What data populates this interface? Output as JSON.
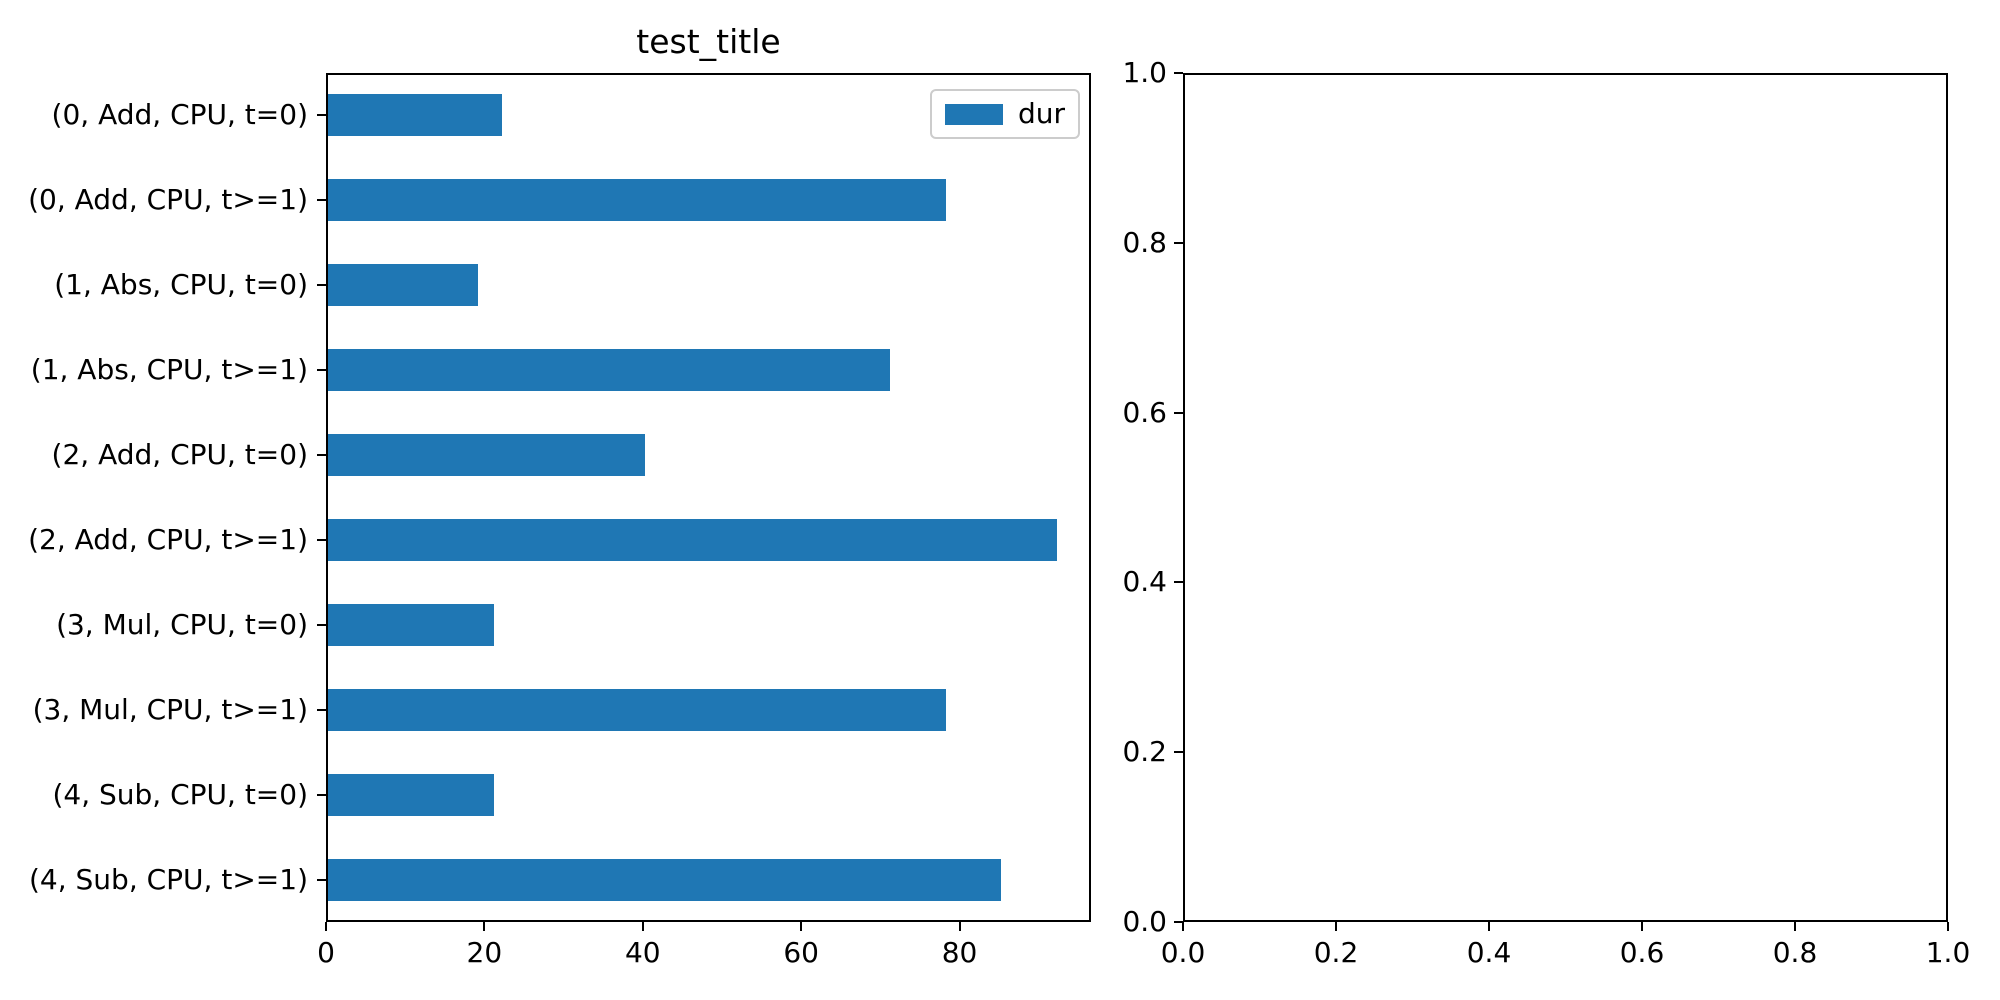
{
  "figure": {
    "background": "#ffffff"
  },
  "chart_data": [
    {
      "type": "bar",
      "orientation": "horizontal",
      "title": "test_title",
      "categories": [
        "(0, Add, CPU, t=0)",
        "(0, Add, CPU, t>=1)",
        "(1, Abs, CPU, t=0)",
        "(1, Abs, CPU, t>=1)",
        "(2, Add, CPU, t=0)",
        "(2, Add, CPU, t>=1)",
        "(3, Mul, CPU, t=0)",
        "(3, Mul, CPU, t>=1)",
        "(4, Sub, CPU, t=0)",
        "(4, Sub, CPU, t>=1)"
      ],
      "series": [
        {
          "name": "dur",
          "values": [
            22,
            78,
            19,
            71,
            40,
            92,
            21,
            78,
            21,
            85
          ]
        }
      ],
      "xlabel": "",
      "ylabel": "",
      "xlim": [
        0,
        96.6
      ],
      "xticks": [
        0,
        20,
        40,
        60,
        80
      ],
      "bar_color": "#1f77b4",
      "bar_height_fraction": 0.5,
      "grid": false,
      "legend": {
        "label": "dur",
        "position": "upper-right",
        "border_color": "#cccccc"
      }
    },
    {
      "type": "empty",
      "title": "",
      "xlim": [
        0,
        1
      ],
      "ylim": [
        0,
        1
      ],
      "xtick_labels": [
        "0.0",
        "0.2",
        "0.4",
        "0.6",
        "0.8",
        "1.0"
      ],
      "ytick_labels_bottom_to_top": [
        "0.0",
        "0.2",
        "0.4",
        "0.6",
        "0.8",
        "1.0"
      ],
      "grid": false
    }
  ]
}
